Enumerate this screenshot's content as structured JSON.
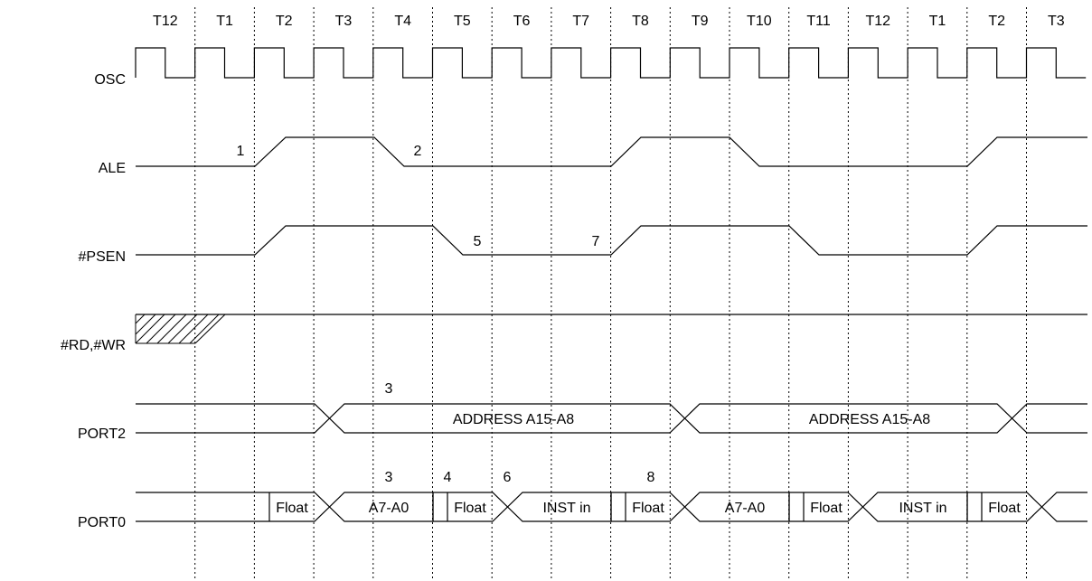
{
  "periods": [
    "T12",
    "T1",
    "T2",
    "T3",
    "T4",
    "T5",
    "T6",
    "T7",
    "T8",
    "T9",
    "T10",
    "T11",
    "T12",
    "T1",
    "T2",
    "T3"
  ],
  "signals": {
    "osc": "OSC",
    "ale": "ALE",
    "psen": "#PSEN",
    "rdwr": "#RD,#WR",
    "port2": "PORT2",
    "port0": "PORT0"
  },
  "annotations": {
    "ale_rise": "1",
    "ale_fall": "2",
    "port2_addr": "3",
    "port0_addr": "3",
    "port0_float1": "4",
    "psen_fall": "5",
    "port0_inst": "6",
    "psen_rise": "7",
    "port0_float2": "8"
  },
  "port2_bus": [
    "ADDRESS A15-A8",
    "ADDRESS A15-A8"
  ],
  "port0_bus": [
    "Float",
    "A7-A0",
    "Float",
    "INST in",
    "Float",
    "A7-A0",
    "Float",
    "INST in",
    "Float"
  ]
}
